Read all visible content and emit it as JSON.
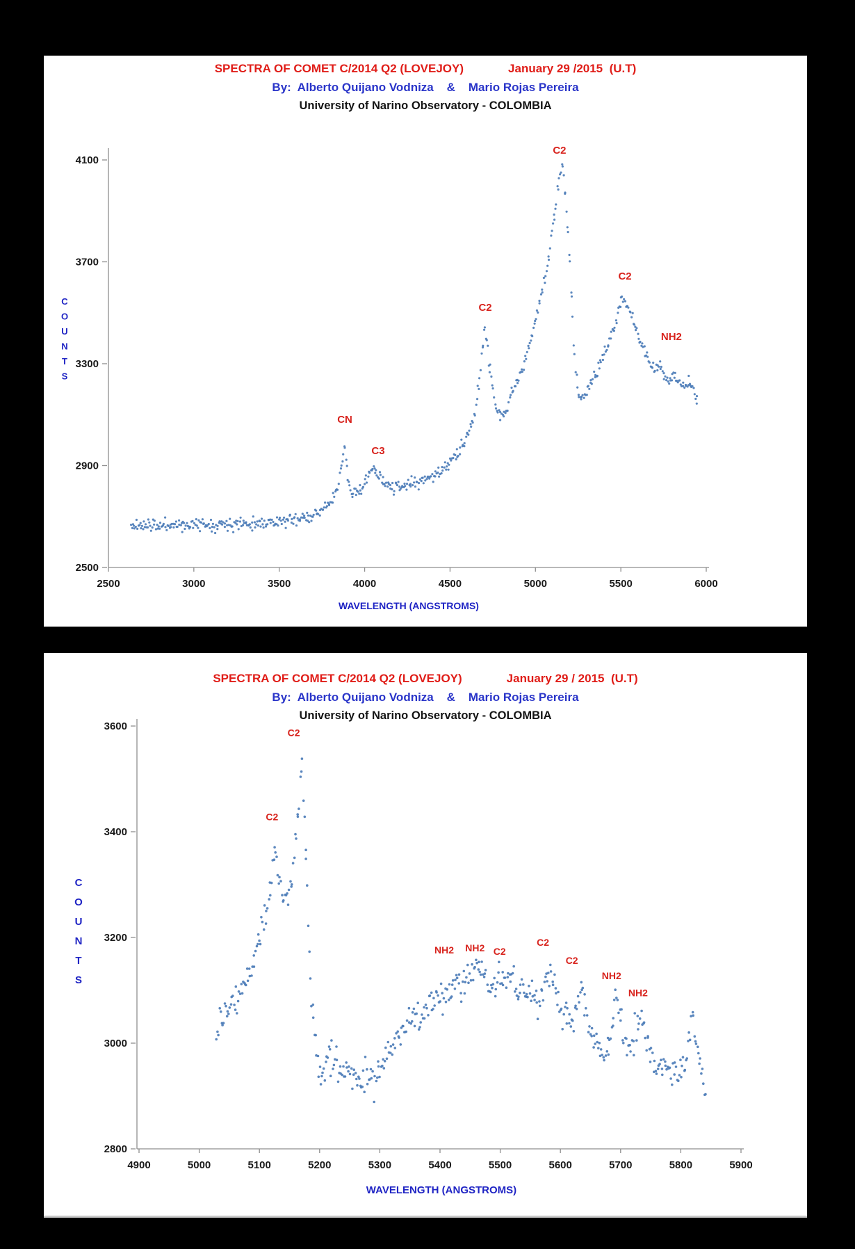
{
  "page": {
    "background": "#000000",
    "panel_background": "#ffffff"
  },
  "colors": {
    "title_red": "#e01d18",
    "title_blue": "#2a35c9",
    "title_black": "#141414",
    "annotation_red": "#d8231d",
    "axis_label_blue": "#1f24c4",
    "tick_text": "#1a1a1a",
    "axis_line": "#8f8f8f",
    "point_blue": "#4d7db9"
  },
  "chart_data": [
    {
      "type": "scatter",
      "title": "SPECTRA OF COMET C/2014 Q2 (LOVEJOY)",
      "date": "January 29 /2015  (U.T)",
      "byline": "By:  Alberto Quijano Vodniza    &    Mario Rojas Pereira",
      "institution": "University of Narino Observatory - COLOMBIA",
      "xlabel": "WAVELENGTH  (ANGSTROMS)",
      "ylabel": "COUNTS",
      "x_range": [
        2500,
        6000
      ],
      "y_range": [
        2500,
        4100
      ],
      "x_ticks": [
        2500,
        3000,
        3500,
        4000,
        4500,
        5000,
        5500,
        6000
      ],
      "y_ticks": [
        2500,
        2900,
        3300,
        3700,
        4100
      ],
      "grid": false,
      "legend": "none",
      "point_count": 620,
      "noise": 12,
      "annotations": [
        {
          "label": "CN",
          "x": 3884,
          "y": 3068
        },
        {
          "label": "C3",
          "x": 4079,
          "y": 2945
        },
        {
          "label": "C2",
          "x": 4706,
          "y": 3508
        },
        {
          "label": "C2",
          "x": 5141,
          "y": 4125
        },
        {
          "label": "C2",
          "x": 5524,
          "y": 3630
        },
        {
          "label": "NH2",
          "x": 5796,
          "y": 3393
        }
      ],
      "profile": [
        [
          2630,
          2662
        ],
        [
          2700,
          2668
        ],
        [
          2780,
          2664
        ],
        [
          2860,
          2668
        ],
        [
          2940,
          2666
        ],
        [
          3020,
          2670
        ],
        [
          3100,
          2668
        ],
        [
          3180,
          2672
        ],
        [
          3260,
          2670
        ],
        [
          3340,
          2674
        ],
        [
          3420,
          2676
        ],
        [
          3500,
          2680
        ],
        [
          3580,
          2686
        ],
        [
          3660,
          2700
        ],
        [
          3720,
          2712
        ],
        [
          3780,
          2742
        ],
        [
          3820,
          2768
        ],
        [
          3850,
          2830
        ],
        [
          3870,
          2920
        ],
        [
          3882,
          2982
        ],
        [
          3890,
          2940
        ],
        [
          3900,
          2852
        ],
        [
          3915,
          2800
        ],
        [
          3940,
          2792
        ],
        [
          3970,
          2808
        ],
        [
          4000,
          2830
        ],
        [
          4030,
          2868
        ],
        [
          4055,
          2888
        ],
        [
          4080,
          2868
        ],
        [
          4110,
          2838
        ],
        [
          4150,
          2818
        ],
        [
          4200,
          2812
        ],
        [
          4260,
          2824
        ],
        [
          4320,
          2838
        ],
        [
          4380,
          2856
        ],
        [
          4440,
          2876
        ],
        [
          4500,
          2910
        ],
        [
          4550,
          2950
        ],
        [
          4600,
          3010
        ],
        [
          4640,
          3090
        ],
        [
          4670,
          3220
        ],
        [
          4690,
          3360
        ],
        [
          4702,
          3442
        ],
        [
          4715,
          3400
        ],
        [
          4730,
          3300
        ],
        [
          4750,
          3200
        ],
        [
          4775,
          3120
        ],
        [
          4800,
          3085
        ],
        [
          4830,
          3120
        ],
        [
          4860,
          3180
        ],
        [
          4890,
          3230
        ],
        [
          4920,
          3270
        ],
        [
          4950,
          3330
        ],
        [
          4980,
          3420
        ],
        [
          5010,
          3500
        ],
        [
          5040,
          3590
        ],
        [
          5070,
          3690
        ],
        [
          5100,
          3830
        ],
        [
          5125,
          3950
        ],
        [
          5145,
          4050
        ],
        [
          5158,
          4078
        ],
        [
          5170,
          3990
        ],
        [
          5185,
          3870
        ],
        [
          5195,
          3760
        ],
        [
          5205,
          3650
        ],
        [
          5215,
          3520
        ],
        [
          5222,
          3420
        ],
        [
          5230,
          3330
        ],
        [
          5240,
          3250
        ],
        [
          5255,
          3180
        ],
        [
          5275,
          3160
        ],
        [
          5300,
          3190
        ],
        [
          5330,
          3230
        ],
        [
          5360,
          3270
        ],
        [
          5395,
          3320
        ],
        [
          5430,
          3380
        ],
        [
          5460,
          3440
        ],
        [
          5490,
          3520
        ],
        [
          5505,
          3565
        ],
        [
          5520,
          3545
        ],
        [
          5540,
          3520
        ],
        [
          5560,
          3500
        ],
        [
          5575,
          3470
        ],
        [
          5595,
          3430
        ],
        [
          5615,
          3390
        ],
        [
          5640,
          3350
        ],
        [
          5660,
          3320
        ],
        [
          5680,
          3295
        ],
        [
          5700,
          3280
        ],
        [
          5715,
          3300
        ],
        [
          5730,
          3290
        ],
        [
          5745,
          3260
        ],
        [
          5765,
          3240
        ],
        [
          5785,
          3225
        ],
        [
          5805,
          3230
        ],
        [
          5820,
          3260
        ],
        [
          5835,
          3240
        ],
        [
          5855,
          3220
        ],
        [
          5875,
          3200
        ],
        [
          5895,
          3230
        ],
        [
          5915,
          3210
        ],
        [
          5935,
          3175
        ],
        [
          5950,
          3160
        ]
      ]
    },
    {
      "type": "scatter",
      "title": "SPECTRA OF COMET C/2014 Q2 (LOVEJOY)",
      "date": "January 29 / 2015  (U.T)",
      "byline": "By:  Alberto Quijano Vodniza    &    Mario Rojas Pereira",
      "institution": "University of Narino Observatory - COLOMBIA",
      "xlabel": "WAVELENGTH  (ANGSTROMS)",
      "ylabel": "COUNTS",
      "x_range": [
        4900,
        5900
      ],
      "y_range": [
        2800,
        3600
      ],
      "x_ticks": [
        4900,
        5000,
        5100,
        5200,
        5300,
        5400,
        5500,
        5600,
        5700,
        5800,
        5900
      ],
      "y_ticks": [
        2800,
        3000,
        3200,
        3400,
        3600
      ],
      "grid": false,
      "legend": "none",
      "point_count": 480,
      "noise": 15,
      "annotations": [
        {
          "label": "C2",
          "x": 5121,
          "y": 3422
        },
        {
          "label": "C2",
          "x": 5157,
          "y": 3581
        },
        {
          "label": "NH2",
          "x": 5407,
          "y": 3170
        },
        {
          "label": "NH2",
          "x": 5458,
          "y": 3174
        },
        {
          "label": "C2",
          "x": 5499,
          "y": 3167
        },
        {
          "label": "C2",
          "x": 5571,
          "y": 3184
        },
        {
          "label": "C2",
          "x": 5619,
          "y": 3150
        },
        {
          "label": "NH2",
          "x": 5685,
          "y": 3121
        },
        {
          "label": "NH2",
          "x": 5729,
          "y": 3089
        }
      ],
      "profile": [
        [
          5028,
          3030
        ],
        [
          5038,
          3055
        ],
        [
          5048,
          3070
        ],
        [
          5058,
          3078
        ],
        [
          5068,
          3092
        ],
        [
          5078,
          3120
        ],
        [
          5088,
          3150
        ],
        [
          5098,
          3180
        ],
        [
          5108,
          3225
        ],
        [
          5118,
          3290
        ],
        [
          5126,
          3360
        ],
        [
          5132,
          3330
        ],
        [
          5138,
          3285
        ],
        [
          5144,
          3260
        ],
        [
          5150,
          3285
        ],
        [
          5156,
          3330
        ],
        [
          5161,
          3400
        ],
        [
          5166,
          3480
        ],
        [
          5170,
          3540
        ],
        [
          5174,
          3450
        ],
        [
          5178,
          3320
        ],
        [
          5182,
          3180
        ],
        [
          5187,
          3070
        ],
        [
          5193,
          2990
        ],
        [
          5200,
          2955
        ],
        [
          5210,
          2962
        ],
        [
          5220,
          2972
        ],
        [
          5230,
          2958
        ],
        [
          5240,
          2942
        ],
        [
          5250,
          2948
        ],
        [
          5260,
          2936
        ],
        [
          5270,
          2930
        ],
        [
          5280,
          2942
        ],
        [
          5290,
          2928
        ],
        [
          5300,
          2948
        ],
        [
          5310,
          2972
        ],
        [
          5320,
          2992
        ],
        [
          5330,
          3012
        ],
        [
          5340,
          3026
        ],
        [
          5352,
          3042
        ],
        [
          5365,
          3052
        ],
        [
          5378,
          3062
        ],
        [
          5392,
          3075
        ],
        [
          5405,
          3088
        ],
        [
          5418,
          3100
        ],
        [
          5428,
          3118
        ],
        [
          5438,
          3105
        ],
        [
          5448,
          3118
        ],
        [
          5458,
          3135
        ],
        [
          5466,
          3142
        ],
        [
          5474,
          3118
        ],
        [
          5484,
          3105
        ],
        [
          5494,
          3112
        ],
        [
          5504,
          3125
        ],
        [
          5512,
          3138
        ],
        [
          5520,
          3122
        ],
        [
          5530,
          3108
        ],
        [
          5542,
          3102
        ],
        [
          5554,
          3088
        ],
        [
          5566,
          3076
        ],
        [
          5576,
          3120
        ],
        [
          5583,
          3150
        ],
        [
          5590,
          3095
        ],
        [
          5600,
          3060
        ],
        [
          5612,
          3048
        ],
        [
          5622,
          3038
        ],
        [
          5630,
          3082
        ],
        [
          5636,
          3105
        ],
        [
          5644,
          3058
        ],
        [
          5654,
          3008
        ],
        [
          5664,
          2982
        ],
        [
          5674,
          2966
        ],
        [
          5682,
          2992
        ],
        [
          5688,
          3060
        ],
        [
          5693,
          3082
        ],
        [
          5698,
          3055
        ],
        [
          5706,
          3015
        ],
        [
          5716,
          2995
        ],
        [
          5726,
          3022
        ],
        [
          5733,
          3062
        ],
        [
          5740,
          3020
        ],
        [
          5750,
          2980
        ],
        [
          5760,
          2966
        ],
        [
          5772,
          2958
        ],
        [
          5784,
          2952
        ],
        [
          5796,
          2946
        ],
        [
          5806,
          2956
        ],
        [
          5814,
          3000
        ],
        [
          5820,
          3028
        ],
        [
          5826,
          2995
        ],
        [
          5832,
          2962
        ],
        [
          5838,
          2920
        ],
        [
          5842,
          2868
        ]
      ]
    }
  ]
}
